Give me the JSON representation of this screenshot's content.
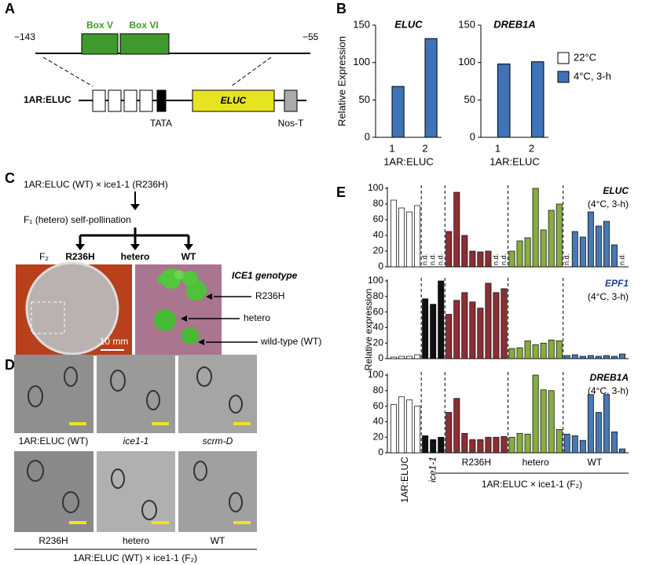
{
  "panel_labels": [
    "A",
    "B",
    "C",
    "D",
    "E"
  ],
  "panel_a": {
    "start": "−143",
    "end": "−55",
    "boxes": [
      "Box V",
      "Box VI"
    ],
    "construct": "1AR:ELUC",
    "reporter": "ELUC",
    "tata": "TATA",
    "terminator": "Nos-T"
  },
  "panel_c": {
    "cross": "1AR:ELUC (WT) × ice1-1 (R236H)",
    "f1": "F₁ (hetero) self-pollination",
    "f2": "F₂",
    "genotypes": [
      "R236H",
      "hetero",
      "WT"
    ],
    "photo_title": "ICE1 genotype",
    "photo_labels": [
      "R236H",
      "hetero",
      "wild-type (WT)"
    ],
    "scale": "10 mm"
  },
  "panel_d": {
    "labels": [
      "1AR:ELUC (WT)",
      "ice1-1",
      "scrm-D",
      "R236H",
      "hetero",
      "WT"
    ],
    "xlabel": "1AR:ELUC (WT) × ice1-1 (F₂)"
  },
  "panel_e": {
    "ylabel": "Relative expression",
    "group_labels": [
      "1AR:ELUC",
      "ice1-1",
      "R236H",
      "hetero",
      "WT"
    ],
    "xlabel": "1AR:ELUC × ice1-1 (F₂)"
  },
  "chart_data": [
    {
      "type": "bar",
      "title": "ELUC",
      "categories": [
        "1",
        "2"
      ],
      "ylabel": "Relative Expression",
      "xlabel": "1AR:ELUC",
      "series": [
        {
          "color": "#ffffff",
          "values": [
            0,
            0
          ]
        },
        {
          "color": "#3f73b8",
          "values": [
            68,
            132
          ]
        }
      ],
      "ylim": [
        0,
        150
      ],
      "yticks": [
        0,
        50,
        100,
        150
      ]
    },
    {
      "type": "bar",
      "title": "DREB1A",
      "categories": [
        "1",
        "2"
      ],
      "xlabel": "1AR:ELUC",
      "legend": "right",
      "series": [
        {
          "name": "22°C",
          "color": "#ffffff",
          "values": [
            0,
            0
          ]
        },
        {
          "name": "4°C, 3-h",
          "color": "#3f73b8",
          "values": [
            98,
            101
          ]
        }
      ],
      "ylim": [
        0,
        150
      ],
      "yticks": [
        0,
        50,
        100,
        150
      ]
    },
    {
      "type": "grouped-bar",
      "title": "ELUC",
      "subtitle": "(4°C, 3-h)",
      "title_color": "#000000",
      "ylim": [
        0,
        100
      ],
      "yticks": [
        0,
        20,
        40,
        60,
        80,
        100
      ],
      "series": [
        {
          "color": "#ffffff",
          "values": [
            85,
            75,
            70,
            78
          ]
        },
        {
          "color": "#111111",
          "values": [
            null,
            null,
            null
          ],
          "value_labels": [
            "n.d.",
            "n.d.",
            "n.d."
          ]
        },
        {
          "color": "#8b2f33",
          "values": [
            45,
            95,
            40,
            20,
            19,
            20,
            null,
            null
          ],
          "value_labels": [
            null,
            null,
            null,
            null,
            null,
            null,
            "n.d.",
            "n.d."
          ]
        },
        {
          "color": "#86ad3e",
          "values": [
            20,
            33,
            37,
            100,
            47,
            72,
            80
          ]
        },
        {
          "color": "#4a78b0",
          "values": [
            null,
            45,
            38,
            70,
            52,
            58,
            28,
            null
          ],
          "value_labels": [
            "n.d.",
            null,
            null,
            null,
            null,
            null,
            null,
            "n.d."
          ]
        }
      ]
    },
    {
      "type": "grouped-bar",
      "title": "EPF1",
      "subtitle": "(4°C, 3-h)",
      "title_color": "#1c3f94",
      "ylim": [
        0,
        100
      ],
      "yticks": [
        0,
        20,
        40,
        60,
        80,
        100
      ],
      "series": [
        {
          "color": "#ffffff",
          "values": [
            2,
            3,
            3,
            5
          ]
        },
        {
          "color": "#111111",
          "values": [
            77,
            70,
            100
          ]
        },
        {
          "color": "#8b2f33",
          "values": [
            57,
            75,
            85,
            73,
            65,
            97,
            85,
            90
          ]
        },
        {
          "color": "#86ad3e",
          "values": [
            13,
            14,
            23,
            18,
            20,
            24,
            23
          ]
        },
        {
          "color": "#4a78b0",
          "values": [
            4,
            5,
            3,
            4,
            3,
            4,
            3,
            6
          ]
        }
      ]
    },
    {
      "type": "grouped-bar",
      "title": "DREB1A",
      "subtitle": "(4°C, 3-h)",
      "title_color": "#000000",
      "ylim": [
        0,
        100
      ],
      "yticks": [
        0,
        20,
        40,
        60,
        80,
        100
      ],
      "series": [
        {
          "color": "#ffffff",
          "values": [
            62,
            72,
            68,
            60
          ]
        },
        {
          "color": "#111111",
          "values": [
            22,
            17,
            20
          ]
        },
        {
          "color": "#8b2f33",
          "values": [
            52,
            70,
            25,
            17,
            17,
            20,
            20,
            21
          ]
        },
        {
          "color": "#86ad3e",
          "values": [
            20,
            25,
            24,
            100,
            81,
            80,
            30
          ]
        },
        {
          "color": "#4a78b0",
          "values": [
            24,
            22,
            16,
            75,
            52,
            75,
            27,
            5
          ]
        }
      ]
    }
  ]
}
